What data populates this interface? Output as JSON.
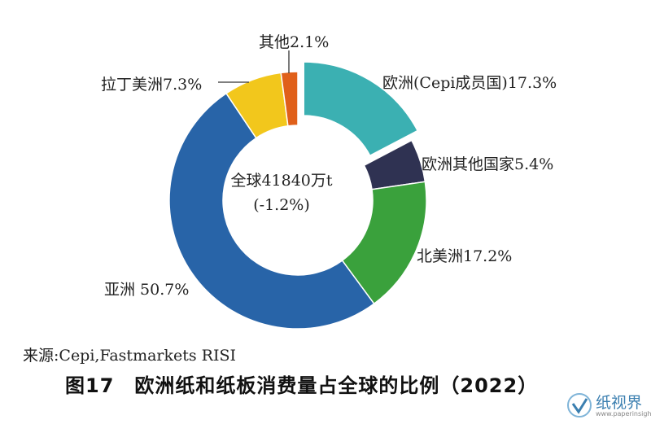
{
  "chart_data": {
    "type": "pie",
    "donut": true,
    "center_label": [
      "全球41840万t",
      "(-1.2%)"
    ],
    "start_slice": "欧洲(Cepi成员国)",
    "slices": [
      {
        "label": "欧洲(Cepi成员国)17.3%",
        "value": 17.3,
        "color": "#3bb0b2",
        "exploded": true
      },
      {
        "label": "欧洲其他国家5.4%",
        "value": 5.4,
        "color": "#2f3252",
        "exploded": false
      },
      {
        "label": "北美洲17.2%",
        "value": 17.2,
        "color": "#3aa13c",
        "exploded": false
      },
      {
        "label": "亚洲 50.7%",
        "value": 50.7,
        "color": "#2864a8",
        "exploded": false
      },
      {
        "label": "拉丁美洲7.3%",
        "value": 7.3,
        "color": "#f2c71c",
        "exploded": false
      },
      {
        "label": "其他2.1%",
        "value": 2.1,
        "color": "#e0601a",
        "exploded": false
      }
    ]
  },
  "source": "来源:Cepi,Fastmarkets RISI",
  "figure_title": "图17　欧洲纸和纸板消费量占全球的比例（2022）",
  "watermark": {
    "name": "纸视界",
    "url": "www.paperinsight.net",
    "color": "#3b7fb0"
  }
}
